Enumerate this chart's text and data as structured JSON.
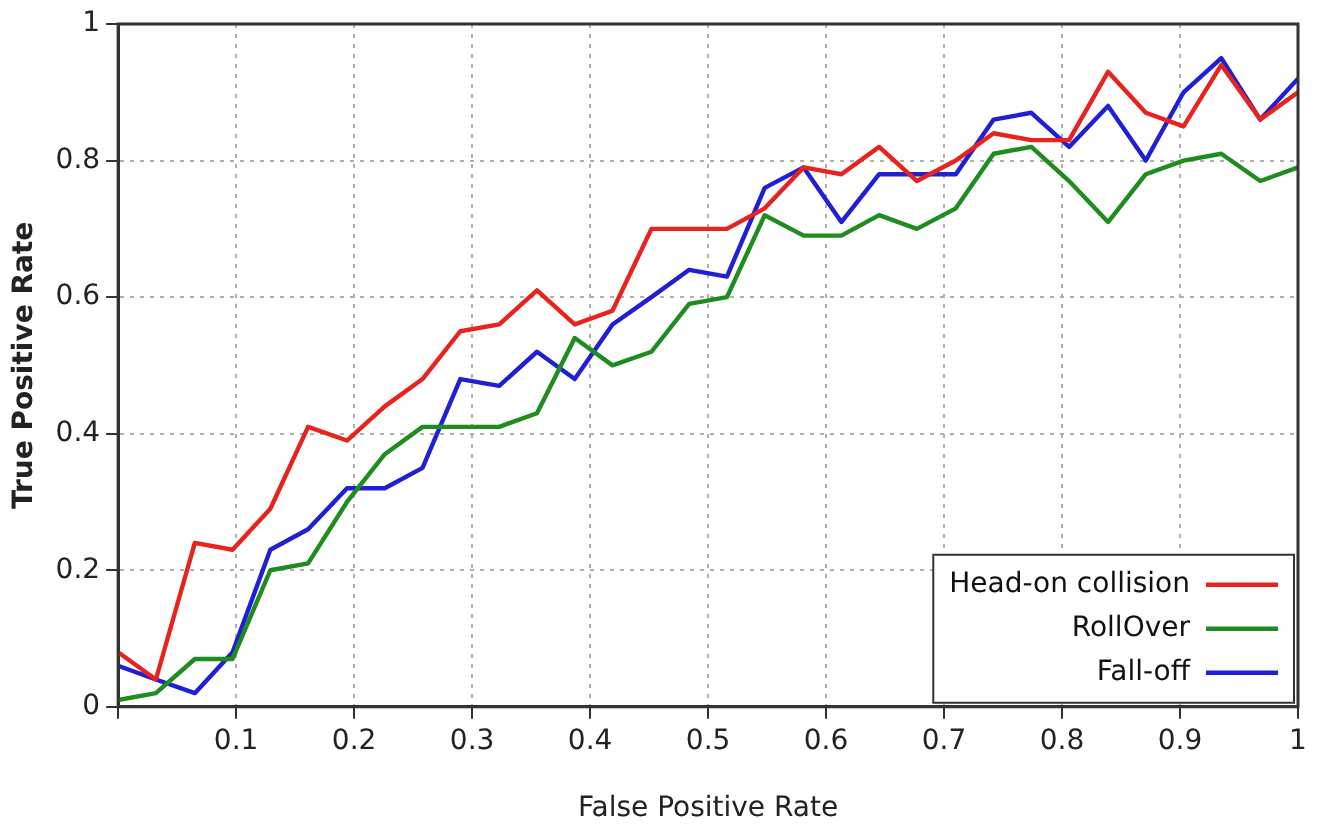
{
  "chart_data": {
    "type": "line",
    "xlabel": "False Positive Rate",
    "ylabel": "True Positive Rate",
    "x": [
      0,
      0.032,
      0.065,
      0.097,
      0.129,
      0.161,
      0.194,
      0.226,
      0.258,
      0.29,
      0.323,
      0.355,
      0.387,
      0.419,
      0.452,
      0.484,
      0.516,
      0.548,
      0.581,
      0.613,
      0.645,
      0.677,
      0.71,
      0.742,
      0.774,
      0.806,
      0.839,
      0.871,
      0.903,
      0.935,
      0.968,
      1
    ],
    "series": [
      {
        "name": "Head-on collision",
        "color": "#e8231e",
        "values": [
          0.08,
          0.04,
          0.24,
          0.23,
          0.29,
          0.41,
          0.39,
          0.44,
          0.48,
          0.55,
          0.56,
          0.61,
          0.56,
          0.58,
          0.7,
          0.7,
          0.7,
          0.73,
          0.79,
          0.78,
          0.82,
          0.77,
          0.8,
          0.84,
          0.83,
          0.83,
          0.93,
          0.87,
          0.85,
          0.94,
          0.86,
          0.9
        ]
      },
      {
        "name": "RollOver",
        "color": "#1f8c1f",
        "values": [
          0.01,
          0.02,
          0.07,
          0.07,
          0.2,
          0.21,
          0.3,
          0.37,
          0.41,
          0.41,
          0.41,
          0.43,
          0.54,
          0.5,
          0.52,
          0.59,
          0.6,
          0.72,
          0.69,
          0.69,
          0.72,
          0.7,
          0.73,
          0.81,
          0.82,
          0.77,
          0.71,
          0.78,
          0.8,
          0.81,
          0.77,
          0.79
        ]
      },
      {
        "name": "Fall-off",
        "color": "#1f1fd6",
        "values": [
          0.06,
          0.04,
          0.02,
          0.08,
          0.23,
          0.26,
          0.32,
          0.32,
          0.35,
          0.48,
          0.47,
          0.52,
          0.48,
          0.56,
          0.6,
          0.64,
          0.63,
          0.76,
          0.79,
          0.71,
          0.78,
          0.78,
          0.78,
          0.86,
          0.87,
          0.82,
          0.88,
          0.8,
          0.9,
          0.95,
          0.86,
          0.92
        ]
      }
    ],
    "xlim": [
      0,
      1
    ],
    "xticks": [
      {
        "value": 0,
        "label": null
      },
      0.1,
      0.2,
      0.3,
      0.4,
      0.5,
      0.6,
      0.7,
      0.8,
      0.9,
      1
    ],
    "ylim": [
      0,
      1
    ],
    "yticks": [
      0,
      0.2,
      0.4,
      0.6,
      0.8,
      1
    ],
    "grid": true,
    "legend": "bottom right",
    "marker": "none",
    "line_style": "solid"
  }
}
